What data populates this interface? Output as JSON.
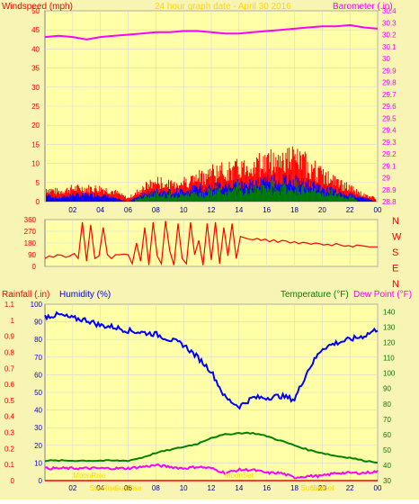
{
  "title": "24 hour graph date - April 30 2016",
  "colors": {
    "background": "#f8f4b4",
    "plot_bg": "#ffffa8",
    "grid": "#d8d8d8",
    "wind_avg": "#0000ff",
    "wind_gust": "#ff0000",
    "wind_green": "#008000",
    "barometer": "#ff00ff",
    "direction": "#ff0000",
    "humidity": "#0000ff",
    "temperature": "#008000",
    "dewpoint": "#ff00ff",
    "rainfall": "#ff0000",
    "title_color": "#ffd800",
    "sun_label": "#ffd800"
  },
  "chart_data": [
    {
      "type": "line",
      "panel": "wind-barometer",
      "ylabel_left": "Windspeed (mph)",
      "ylabel_right": "Barometer (.in)",
      "ylim_left": [
        0,
        50
      ],
      "ylim_right": [
        28.8,
        30.4
      ],
      "yticks_left": [
        "0",
        "5",
        "10",
        "15",
        "20",
        "25",
        "30",
        "35",
        "40",
        "45",
        "50"
      ],
      "yticks_right": [
        "28.8",
        "28.9",
        "29",
        "29.1",
        "29.2",
        "29.3",
        "29.4",
        "29.5",
        "29.6",
        "29.7",
        "29.8",
        "29.9",
        "30",
        "30.1",
        "30.2",
        "30.3",
        "30.4"
      ],
      "xticks": [
        "02",
        "04",
        "06",
        "08",
        "10",
        "12",
        "14",
        "16",
        "18",
        "20",
        "22",
        "00"
      ],
      "barometer": {
        "x": [
          0,
          1,
          2,
          3,
          4,
          5,
          6,
          7,
          8,
          9,
          10,
          11,
          12,
          13,
          14,
          15,
          16,
          17,
          18,
          19,
          20,
          21,
          22,
          23,
          24
        ],
        "values": [
          30.18,
          30.19,
          30.18,
          30.16,
          30.18,
          30.19,
          30.2,
          30.21,
          30.22,
          30.22,
          30.23,
          30.23,
          30.22,
          30.21,
          30.21,
          30.22,
          30.23,
          30.24,
          30.25,
          30.26,
          30.27,
          30.27,
          30.28,
          30.26,
          30.25
        ]
      },
      "gust_envelope": {
        "x": [
          0,
          1,
          2,
          3,
          4,
          5,
          6,
          7,
          8,
          9,
          10,
          11,
          12,
          13,
          14,
          15,
          16,
          17,
          18,
          19,
          20,
          21,
          22,
          23,
          24
        ],
        "values": [
          4,
          3,
          4,
          4,
          4,
          3,
          1,
          4,
          6,
          5,
          6,
          7,
          9,
          9,
          10,
          11,
          12,
          13,
          13,
          11,
          8,
          6,
          4,
          2,
          1
        ]
      },
      "avg_envelope": {
        "x": [
          0,
          1,
          2,
          3,
          4,
          5,
          6,
          7,
          8,
          9,
          10,
          11,
          12,
          13,
          14,
          15,
          16,
          17,
          18,
          19,
          20,
          21,
          22,
          23,
          24
        ],
        "values": [
          2,
          1,
          2,
          2,
          2,
          1,
          0,
          2,
          3,
          3,
          3,
          4,
          4,
          5,
          5,
          5,
          6,
          6,
          6,
          5,
          4,
          3,
          2,
          1,
          0
        ]
      }
    },
    {
      "type": "line",
      "panel": "wind-direction",
      "ylim": [
        0,
        360
      ],
      "yticks": [
        "0",
        "90",
        "180",
        "270",
        "360"
      ],
      "compass_labels": [
        "N",
        "W",
        "S",
        "E",
        "N"
      ],
      "x": [
        0,
        0.3,
        0.6,
        0.9,
        1.2,
        1.5,
        1.8,
        2.1,
        2.4,
        2.7,
        3.0,
        3.3,
        3.6,
        3.9,
        4.2,
        4.5,
        4.8,
        5.1,
        5.4,
        5.7,
        6.0,
        6.3,
        6.6,
        6.9,
        7.2,
        7.5,
        7.8,
        8.1,
        8.4,
        8.7,
        9.0,
        9.3,
        9.6,
        9.9,
        10.2,
        10.5,
        10.8,
        11.1,
        11.4,
        11.7,
        12.0,
        12.3,
        12.6,
        12.9,
        13.2,
        13.5,
        13.8,
        14.1,
        14.4,
        14.7,
        15.0,
        15.3,
        15.6,
        15.9,
        16.2,
        16.5,
        16.8,
        17.1,
        17.4,
        17.7,
        18.0,
        18.3,
        18.6,
        18.9,
        19.2,
        19.5,
        19.8,
        20.1,
        20.4,
        20.7,
        21.0,
        21.3,
        21.6,
        21.9,
        22.2,
        22.5,
        22.8,
        23.1,
        23.4,
        23.7,
        24.0
      ],
      "values": [
        60,
        80,
        70,
        90,
        85,
        70,
        80,
        100,
        60,
        340,
        40,
        320,
        60,
        80,
        300,
        90,
        60,
        90,
        90,
        95,
        90,
        20,
        180,
        40,
        300,
        10,
        340,
        80,
        20,
        350,
        120,
        10,
        330,
        60,
        20,
        340,
        90,
        200,
        10,
        330,
        50,
        340,
        20,
        300,
        80,
        330,
        60,
        230,
        220,
        210,
        205,
        215,
        200,
        210,
        190,
        205,
        185,
        200,
        195,
        180,
        190,
        175,
        185,
        180,
        170,
        180,
        175,
        165,
        170,
        160,
        175,
        165,
        155,
        160,
        150,
        165,
        160,
        155,
        150,
        150,
        150
      ]
    },
    {
      "type": "line",
      "panel": "rain-humidity-temperature",
      "ylabel_left": "Rainfall (.in)",
      "ylabel_left2": "Humidity (%)",
      "ylabel_right": "Temperature (°F)",
      "ylabel_right2": "Dew Point (°F)",
      "ylim_rain": [
        0,
        1.1
      ],
      "ylim_humidity": [
        0,
        100
      ],
      "ylim_temp": [
        30,
        145
      ],
      "yticks_rain": [
        "0",
        "0.1",
        "0.2",
        "0.3",
        "0.4",
        "0.5",
        "0.6",
        "0.7",
        "0.8",
        "0.9",
        "1",
        "1.1"
      ],
      "yticks_humidity": [
        "0",
        "10",
        "20",
        "30",
        "40",
        "50",
        "60",
        "70",
        "80",
        "90",
        "100"
      ],
      "yticks_temp": [
        "30",
        "40",
        "50",
        "60",
        "70",
        "80",
        "90",
        "100",
        "110",
        "120",
        "130",
        "140"
      ],
      "xticks": [
        "02",
        "04",
        "06",
        "08",
        "10",
        "12",
        "14",
        "16",
        "18",
        "20",
        "22",
        "00"
      ],
      "annotations": [
        {
          "text": "SunRise",
          "x": 4.2
        },
        {
          "text": "SunRise",
          "x": 6.0
        },
        {
          "text": "SunSet",
          "x": 19.3
        },
        {
          "text": "SunSet",
          "x": 20.0
        },
        {
          "text": "MoonSet",
          "x": 14.0
        },
        {
          "text": "MoonRise",
          "x": 3.2
        }
      ],
      "humidity": {
        "x": [
          0,
          1,
          2,
          3,
          4,
          5,
          6,
          7,
          8,
          9,
          10,
          11,
          12,
          13,
          14,
          15,
          16,
          17,
          18,
          19,
          20,
          21,
          22,
          23,
          24
        ],
        "values": [
          93,
          94,
          92,
          91,
          88,
          87,
          85,
          84,
          83,
          80,
          77,
          70,
          62,
          47,
          42,
          47,
          47,
          48,
          46,
          63,
          75,
          78,
          80,
          82,
          86
        ]
      },
      "temperature": {
        "x": [
          0,
          1,
          2,
          3,
          4,
          5,
          6,
          7,
          8,
          9,
          10,
          11,
          12,
          13,
          14,
          15,
          16,
          17,
          18,
          19,
          20,
          21,
          22,
          23,
          24
        ],
        "values": [
          43,
          43,
          43,
          43,
          43,
          43,
          43,
          45,
          48,
          50,
          52,
          54,
          58,
          60,
          61,
          61,
          59,
          56,
          53,
          50,
          48,
          46,
          45,
          43,
          42
        ]
      },
      "dewpoint": {
        "x": [
          0,
          1,
          2,
          3,
          4,
          5,
          6,
          7,
          8,
          9,
          10,
          11,
          12,
          13,
          14,
          15,
          16,
          17,
          18,
          19,
          20,
          21,
          22,
          23,
          24
        ],
        "values": [
          38,
          38,
          38,
          38,
          38,
          38,
          38,
          39,
          40,
          39,
          38,
          39,
          38,
          35,
          37,
          37,
          35,
          35,
          32,
          33,
          33,
          35,
          35,
          35,
          36
        ]
      },
      "rainfall": {
        "x": [
          0,
          24
        ],
        "values": [
          0,
          0
        ]
      }
    }
  ]
}
